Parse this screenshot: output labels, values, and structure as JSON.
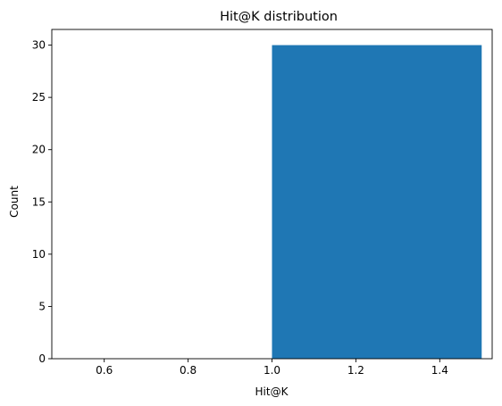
{
  "chart_data": {
    "type": "bar",
    "title": "Hit@K distribution",
    "xlabel": "Hit@K",
    "ylabel": "Count",
    "xlim": [
      0.475,
      1.525
    ],
    "ylim": [
      0,
      31.5
    ],
    "xticks": [
      0.6,
      0.8,
      1.0,
      1.2,
      1.4
    ],
    "xtick_labels": [
      "0.6",
      "0.8",
      "1.0",
      "1.2",
      "1.4"
    ],
    "yticks": [
      0,
      5,
      10,
      15,
      20,
      25,
      30
    ],
    "ytick_labels": [
      "0",
      "5",
      "10",
      "15",
      "20",
      "25",
      "30"
    ],
    "bins": [
      {
        "x0": 0.5,
        "x1": 1.0,
        "value": 0
      },
      {
        "x0": 1.0,
        "x1": 1.5,
        "value": 30
      }
    ],
    "bar_color": "#1f77b4",
    "grid": false,
    "legend": "none"
  }
}
